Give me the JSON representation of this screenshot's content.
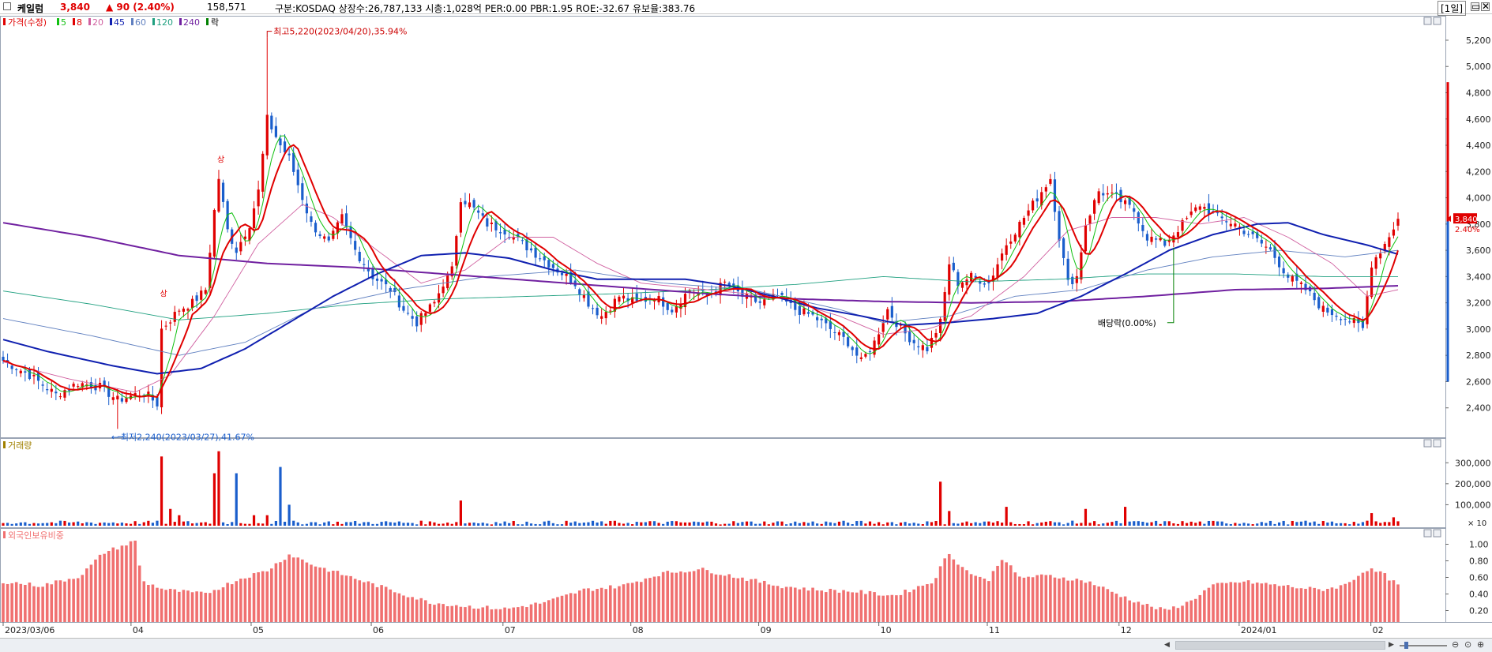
{
  "header": {
    "stock_name": "케일럼",
    "price": "3,840",
    "change": "▲ 90 (2.40%)",
    "volume": "158,571",
    "info": "구분:KOSDAQ 상장수:26,787,133 시총:1,028억 PER:0.00 PBR:1.95 ROE:-32.67 유보율:383.76",
    "period": "[1일]",
    "min_button": "▭",
    "close_button": "✕"
  },
  "colors": {
    "up": "#e00000",
    "down": "#1a5ecc",
    "ma5": "#10c010",
    "ma8": "#e00000",
    "ma20": "#d060a0",
    "ma45": "#1020b0",
    "ma60": "#6080c0",
    "ma120": "#20a080",
    "ma240": "#7020a0",
    "foreign": "#f07070",
    "price_tag_bg": "#e00000"
  },
  "chart_data": [
    {
      "type": "candlestick",
      "legend_label": "가격(수정)",
      "moving_averages": [
        {
          "period": "5",
          "color": "#10c010"
        },
        {
          "period": "8",
          "color": "#e00000"
        },
        {
          "period": "20",
          "color": "#d060a0"
        },
        {
          "period": "45",
          "color": "#1020b0"
        },
        {
          "period": "60",
          "color": "#6080c0"
        },
        {
          "period": "120",
          "color": "#20a080"
        },
        {
          "period": "240",
          "color": "#7020a0"
        }
      ],
      "legend_extra": "락",
      "y_ticks": [
        "5,200",
        "5,000",
        "4,800",
        "4,600",
        "4,400",
        "4,200",
        "4,000",
        "3,800",
        "3,600",
        "3,400",
        "3,200",
        "3,000",
        "2,800",
        "2,600",
        "2,400"
      ],
      "ylim": [
        2200,
        5350
      ],
      "current_price_tag": "3,840",
      "current_change_tag": "2.40%",
      "annotations": {
        "high": "최고5,220(2023/04/20),35.94%",
        "low": "최저2,240(2023/03/27),41.67%",
        "dividend": "배당락(0.00%)",
        "limit_up_1": "상",
        "limit_up_2": "상"
      },
      "keypoints": [
        {
          "i": 0,
          "v": 2760
        },
        {
          "i": 6,
          "v": 2650
        },
        {
          "i": 12,
          "v": 2500
        },
        {
          "i": 17,
          "v": 2590
        },
        {
          "i": 22,
          "v": 2560
        },
        {
          "i": 26,
          "v": 2460
        },
        {
          "i": 32,
          "v": 2520
        },
        {
          "i": 35,
          "v": 2430
        },
        {
          "i": 36,
          "v": 3000
        },
        {
          "i": 40,
          "v": 3150
        },
        {
          "i": 43,
          "v": 3200
        },
        {
          "i": 46,
          "v": 3300
        },
        {
          "i": 48,
          "v": 3900
        },
        {
          "i": 49,
          "v": 4150
        },
        {
          "i": 51,
          "v": 3750
        },
        {
          "i": 53,
          "v": 3600
        },
        {
          "i": 56,
          "v": 3800
        },
        {
          "i": 58,
          "v": 4050
        },
        {
          "i": 60,
          "v": 4600
        },
        {
          "i": 63,
          "v": 4400
        },
        {
          "i": 65,
          "v": 4300
        },
        {
          "i": 67,
          "v": 4100
        },
        {
          "i": 70,
          "v": 3800
        },
        {
          "i": 74,
          "v": 3650
        },
        {
          "i": 77,
          "v": 3850
        },
        {
          "i": 80,
          "v": 3600
        },
        {
          "i": 84,
          "v": 3400
        },
        {
          "i": 88,
          "v": 3300
        },
        {
          "i": 91,
          "v": 3150
        },
        {
          "i": 94,
          "v": 3050
        },
        {
          "i": 98,
          "v": 3200
        },
        {
          "i": 100,
          "v": 3350
        },
        {
          "i": 102,
          "v": 3450
        },
        {
          "i": 104,
          "v": 4000
        },
        {
          "i": 106,
          "v": 3950
        },
        {
          "i": 110,
          "v": 3800
        },
        {
          "i": 114,
          "v": 3750
        },
        {
          "i": 118,
          "v": 3650
        },
        {
          "i": 122,
          "v": 3550
        },
        {
          "i": 126,
          "v": 3450
        },
        {
          "i": 130,
          "v": 3350
        },
        {
          "i": 133,
          "v": 3200
        },
        {
          "i": 136,
          "v": 3100
        },
        {
          "i": 140,
          "v": 3250
        },
        {
          "i": 144,
          "v": 3200
        },
        {
          "i": 148,
          "v": 3250
        },
        {
          "i": 152,
          "v": 3150
        },
        {
          "i": 156,
          "v": 3300
        },
        {
          "i": 160,
          "v": 3250
        },
        {
          "i": 164,
          "v": 3350
        },
        {
          "i": 168,
          "v": 3250
        },
        {
          "i": 172,
          "v": 3200
        },
        {
          "i": 176,
          "v": 3250
        },
        {
          "i": 180,
          "v": 3150
        },
        {
          "i": 184,
          "v": 3100
        },
        {
          "i": 188,
          "v": 3000
        },
        {
          "i": 192,
          "v": 2900
        },
        {
          "i": 195,
          "v": 2750
        },
        {
          "i": 198,
          "v": 2900
        },
        {
          "i": 201,
          "v": 3150
        },
        {
          "i": 204,
          "v": 3000
        },
        {
          "i": 207,
          "v": 2900
        },
        {
          "i": 210,
          "v": 2850
        },
        {
          "i": 213,
          "v": 3050
        },
        {
          "i": 215,
          "v": 3500
        },
        {
          "i": 217,
          "v": 3350
        },
        {
          "i": 220,
          "v": 3400
        },
        {
          "i": 224,
          "v": 3350
        },
        {
          "i": 228,
          "v": 3650
        },
        {
          "i": 232,
          "v": 3850
        },
        {
          "i": 235,
          "v": 4000
        },
        {
          "i": 238,
          "v": 4150
        },
        {
          "i": 240,
          "v": 3700
        },
        {
          "i": 242,
          "v": 3350
        },
        {
          "i": 244,
          "v": 3400
        },
        {
          "i": 246,
          "v": 3800
        },
        {
          "i": 249,
          "v": 4050
        },
        {
          "i": 253,
          "v": 4000
        },
        {
          "i": 257,
          "v": 3900
        },
        {
          "i": 260,
          "v": 3700
        },
        {
          "i": 264,
          "v": 3650
        },
        {
          "i": 268,
          "v": 3800
        },
        {
          "i": 272,
          "v": 3950
        },
        {
          "i": 276,
          "v": 3850
        },
        {
          "i": 280,
          "v": 3800
        },
        {
          "i": 284,
          "v": 3700
        },
        {
          "i": 288,
          "v": 3600
        },
        {
          "i": 292,
          "v": 3400
        },
        {
          "i": 296,
          "v": 3300
        },
        {
          "i": 300,
          "v": 3150
        },
        {
          "i": 304,
          "v": 3100
        },
        {
          "i": 307,
          "v": 3050
        },
        {
          "i": 309,
          "v": 3000
        },
        {
          "i": 311,
          "v": 3500
        },
        {
          "i": 314,
          "v": 3650
        },
        {
          "i": 317,
          "v": 3840
        }
      ],
      "ma_curves": {
        "ma240": [
          [
            0,
            3810
          ],
          [
            20,
            3700
          ],
          [
            40,
            3560
          ],
          [
            60,
            3500
          ],
          [
            80,
            3470
          ],
          [
            100,
            3420
          ],
          [
            120,
            3370
          ],
          [
            140,
            3320
          ],
          [
            160,
            3270
          ],
          [
            180,
            3230
          ],
          [
            200,
            3210
          ],
          [
            220,
            3200
          ],
          [
            240,
            3210
          ],
          [
            260,
            3250
          ],
          [
            280,
            3300
          ],
          [
            300,
            3310
          ],
          [
            317,
            3330
          ]
        ],
        "ma120": [
          [
            0,
            3290
          ],
          [
            20,
            3190
          ],
          [
            40,
            3070
          ],
          [
            60,
            3120
          ],
          [
            80,
            3190
          ],
          [
            100,
            3230
          ],
          [
            120,
            3250
          ],
          [
            140,
            3270
          ],
          [
            160,
            3300
          ],
          [
            180,
            3340
          ],
          [
            200,
            3400
          ],
          [
            220,
            3360
          ],
          [
            240,
            3380
          ],
          [
            260,
            3420
          ],
          [
            280,
            3420
          ],
          [
            300,
            3400
          ],
          [
            317,
            3400
          ]
        ],
        "ma60": [
          [
            0,
            3080
          ],
          [
            20,
            2950
          ],
          [
            40,
            2800
          ],
          [
            55,
            2900
          ],
          [
            70,
            3150
          ],
          [
            90,
            3300
          ],
          [
            110,
            3400
          ],
          [
            130,
            3450
          ],
          [
            150,
            3350
          ],
          [
            170,
            3300
          ],
          [
            190,
            3150
          ],
          [
            200,
            3050
          ],
          [
            215,
            3100
          ],
          [
            230,
            3250
          ],
          [
            245,
            3300
          ],
          [
            260,
            3450
          ],
          [
            275,
            3550
          ],
          [
            290,
            3600
          ],
          [
            305,
            3550
          ],
          [
            317,
            3600
          ]
        ],
        "ma45": [
          [
            0,
            2920
          ],
          [
            10,
            2830
          ],
          [
            25,
            2720
          ],
          [
            35,
            2660
          ],
          [
            45,
            2700
          ],
          [
            55,
            2850
          ],
          [
            65,
            3050
          ],
          [
            75,
            3250
          ],
          [
            85,
            3420
          ],
          [
            95,
            3560
          ],
          [
            105,
            3580
          ],
          [
            115,
            3540
          ],
          [
            125,
            3450
          ],
          [
            135,
            3380
          ],
          [
            145,
            3380
          ],
          [
            155,
            3380
          ],
          [
            165,
            3330
          ],
          [
            175,
            3250
          ],
          [
            185,
            3160
          ],
          [
            195,
            3100
          ],
          [
            205,
            3030
          ],
          [
            215,
            3050
          ],
          [
            225,
            3080
          ],
          [
            235,
            3120
          ],
          [
            245,
            3250
          ],
          [
            255,
            3420
          ],
          [
            265,
            3600
          ],
          [
            275,
            3720
          ],
          [
            285,
            3800
          ],
          [
            292,
            3810
          ],
          [
            300,
            3720
          ],
          [
            310,
            3640
          ],
          [
            317,
            3570
          ]
        ],
        "ma20": [
          [
            0,
            2750
          ],
          [
            15,
            2620
          ],
          [
            30,
            2520
          ],
          [
            38,
            2650
          ],
          [
            48,
            3100
          ],
          [
            58,
            3650
          ],
          [
            68,
            3950
          ],
          [
            75,
            3850
          ],
          [
            85,
            3600
          ],
          [
            95,
            3350
          ],
          [
            105,
            3450
          ],
          [
            115,
            3700
          ],
          [
            125,
            3700
          ],
          [
            135,
            3500
          ],
          [
            145,
            3350
          ],
          [
            160,
            3300
          ],
          [
            175,
            3250
          ],
          [
            190,
            3100
          ],
          [
            200,
            2960
          ],
          [
            210,
            3000
          ],
          [
            220,
            3100
          ],
          [
            232,
            3400
          ],
          [
            242,
            3750
          ],
          [
            252,
            3850
          ],
          [
            262,
            3850
          ],
          [
            272,
            3800
          ],
          [
            282,
            3850
          ],
          [
            292,
            3700
          ],
          [
            302,
            3500
          ],
          [
            310,
            3250
          ],
          [
            317,
            3300
          ]
        ]
      }
    },
    {
      "type": "bar",
      "legend_label": "거래량",
      "y_ticks": [
        "300,000",
        "200,000",
        "100,000"
      ],
      "unit_label": "× 10",
      "ylim": [
        0,
        380000
      ]
    },
    {
      "type": "bar",
      "legend_label": "외국인보유비중",
      "y_ticks": [
        "1.00",
        "0.80",
        "0.60",
        "0.40",
        "0.20"
      ],
      "ylim": [
        0.1,
        1.1
      ]
    }
  ],
  "x_axis": {
    "labels": [
      {
        "text": "2023/03/06",
        "i": 0
      },
      {
        "text": "04",
        "i": 33
      },
      {
        "text": "05",
        "i": 64
      },
      {
        "text": "06",
        "i": 95
      },
      {
        "text": "07",
        "i": 129
      },
      {
        "text": "08",
        "i": 162
      },
      {
        "text": "09",
        "i": 195
      },
      {
        "text": "10",
        "i": 226
      },
      {
        "text": "11",
        "i": 254
      },
      {
        "text": "12",
        "i": 288
      },
      {
        "text": "2024/01",
        "i": 319
      },
      {
        "text": "02",
        "i": 353
      }
    ]
  },
  "scrollbar": {
    "left_arrow": "◀",
    "right_arrow": "▶",
    "zoom_out": "⊖",
    "zoom_reset": "⊙",
    "zoom_in": "⊕"
  }
}
